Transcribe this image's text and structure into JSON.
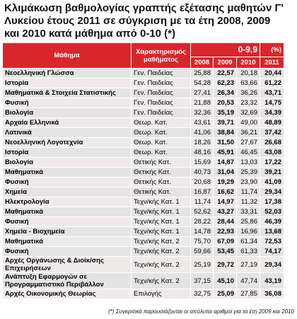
{
  "title": "Κλιμάκωση βαθμολογίας γραπτής εξέτασης μαθητών Γ' Λυκείου έτους 2011 σε σύγκριση με τα έτη 2008, 2009 και 2010 κατά μάθημα από 0-10 (*)",
  "header": {
    "subject": "Μάθημα",
    "category": "Χαρακτηρισμός μαθήματος",
    "range": "0-9,9",
    "unit": "(%)",
    "years": [
      "2008",
      "2009",
      "2010",
      "2011"
    ]
  },
  "table": {
    "rows": [
      [
        "Νεοελληνική Γλώσσα",
        "Γεν. Παιδείας",
        "25,88",
        "22,57",
        "20,18",
        "20,44"
      ],
      [
        "Ιστορία",
        "Γεν. Παιδείας",
        "54,28",
        "62,23",
        "63,66",
        "61,22"
      ],
      [
        "Μαθηματικά & Στοιχεία Στατιστικής",
        "Γεν. Παιδείας",
        "27,41",
        "26,34",
        "36,26",
        "43,71"
      ],
      [
        "Φυσική",
        "Γεν. Παιδείας",
        "21,88",
        "20,53",
        "23,32",
        "14,75"
      ],
      [
        "Βιολογία",
        "Γεν. Παιδείας",
        "32,36",
        "35,19",
        "32,69",
        "34,39"
      ],
      [
        "Αρχαία Ελληνικά",
        "Θεωρ. Κατ.",
        "43,61",
        "39,71",
        "49,00",
        "48,89"
      ],
      [
        "Λατινικά",
        "Θεωρ. Κατ.",
        "41,06",
        "38,84",
        "36,21",
        "37,42"
      ],
      [
        "Νεοελληνική Λογοτεχνία",
        "Θεωρ. Κατ.",
        "18,26",
        "31,50",
        "27,67",
        "26,68"
      ],
      [
        "Ιστορία",
        "Θεωρ. Κατ.",
        "48,16",
        "45,91",
        "46,45",
        "43,08"
      ],
      [
        "Βιολογία",
        "Θετικής Κατ.",
        "15,69",
        "14,87",
        "13,03",
        "17,22"
      ],
      [
        "Μαθηματικά",
        "Θετικής Κατ.",
        "40,73",
        "31,04",
        "25,39",
        "39,21"
      ],
      [
        "Φυσική",
        "Θετικής Κατ.",
        "20,68",
        "19,29",
        "23,90",
        "41,09"
      ],
      [
        "Χημεία",
        "Θετικής Κατ.",
        "16,87",
        "16,62",
        "11,74",
        "29,34"
      ],
      [
        "Ηλεκτρολογία",
        "Τεχν/κής Κατ. 1",
        "11,74",
        "14,97",
        "11,32",
        "17,38"
      ],
      [
        "Μαθηματικά",
        "Τεχν/κής Κατ. 1",
        "52,62",
        "43,27",
        "33,31",
        "52,03"
      ],
      [
        "Φυσική",
        "Τεχν/κής Κατ. 1",
        "28,22",
        "28,44",
        "25,86",
        "46,39"
      ],
      [
        "Χημεία - Βιοχημεία",
        "Τεχν/κής Κατ. 1",
        "14,78",
        "22,93",
        "16,96",
        "13,68"
      ],
      [
        "Μαθηματικά",
        "Τεχν/κής Κατ. 2",
        "75,70",
        "67,09",
        "61,34",
        "72,53"
      ],
      [
        "Φυσική",
        "Τεχν/κής Κατ. 2",
        "59,66",
        "53,45",
        "61,33",
        "74,17"
      ],
      [
        "Αρχές Οργάνωσης & Διοίκ/σης Επιχειρήσεων",
        "Τεχν/κής Κατ. 2",
        "25,19",
        "29,72",
        "27,19",
        "29,34"
      ],
      [
        "Ανάπτυξη Εφαρμογών σε Προγραμματιστικό Περιβάλλον",
        "Τεχν/κής Κατ. 2",
        "37,15",
        "45,10",
        "47,74",
        "43,19"
      ],
      [
        "Αρχές Οικονομικής Θεωρίας",
        "Επιλογής",
        "32,75",
        "25,09",
        "27,85",
        "36,08"
      ]
    ]
  },
  "footnote": "(*) Συγκριτικά παρουσιάζονται οι απόλυτοι αριθμοί για τα έτη 2009 και 2010"
}
